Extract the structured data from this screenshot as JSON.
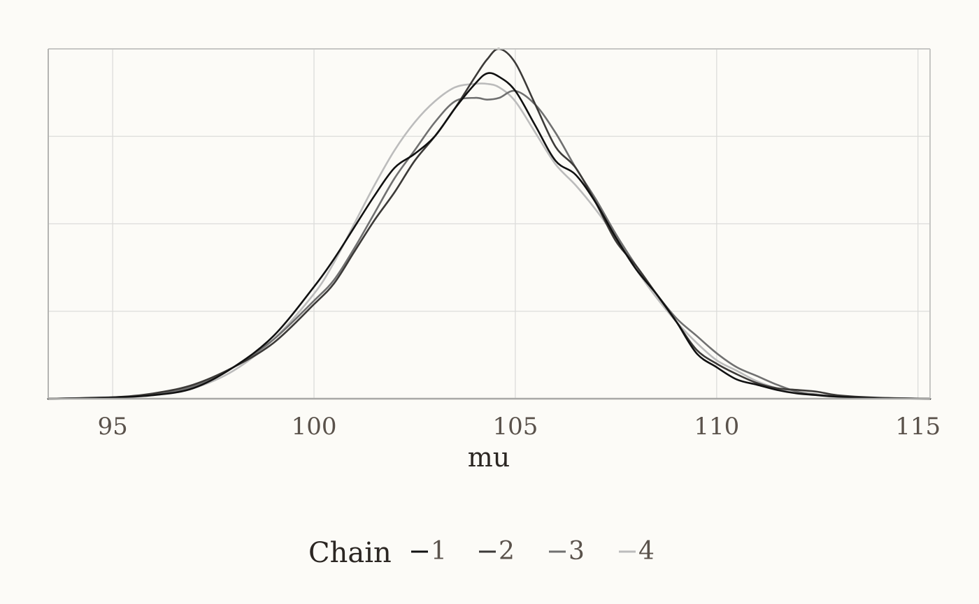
{
  "chart_data": {
    "type": "line",
    "title": "",
    "xlabel": "mu",
    "ylabel": "",
    "xlim": [
      93.4,
      115.3
    ],
    "ylim": [
      0,
      1.0
    ],
    "x_ticks": [
      95,
      100,
      105,
      110,
      115
    ],
    "x_tick_labels": [
      "95",
      "100",
      "105",
      "110",
      "115"
    ],
    "grid": true,
    "legend": {
      "title": "Chain",
      "placement": "bottom",
      "labels": [
        "1",
        "2",
        "3",
        "4"
      ]
    },
    "series": [
      {
        "name": "1",
        "color": "#111111",
        "x": [
          93.4,
          95.0,
          96.0,
          97.0,
          98.0,
          99.0,
          100.0,
          100.5,
          101.0,
          101.5,
          102.0,
          102.5,
          103.0,
          103.5,
          104.0,
          104.3,
          104.6,
          105.0,
          105.5,
          106.0,
          106.5,
          107.0,
          107.5,
          108.0,
          108.5,
          109.0,
          109.5,
          110.0,
          110.5,
          111.0,
          111.5,
          112.0,
          112.5,
          113.0,
          114.0,
          115.3
        ],
        "y": [
          0.0,
          0.004,
          0.01,
          0.03,
          0.09,
          0.18,
          0.32,
          0.4,
          0.49,
          0.58,
          0.66,
          0.7,
          0.75,
          0.83,
          0.9,
          0.93,
          0.92,
          0.88,
          0.78,
          0.68,
          0.64,
          0.56,
          0.46,
          0.37,
          0.3,
          0.22,
          0.13,
          0.09,
          0.055,
          0.04,
          0.025,
          0.015,
          0.01,
          0.006,
          0.002,
          0.0
        ]
      },
      {
        "name": "2",
        "color": "#3c3a38",
        "x": [
          93.4,
          95.0,
          96.0,
          97.0,
          98.0,
          99.0,
          100.0,
          100.5,
          101.0,
          101.5,
          102.0,
          102.5,
          103.0,
          103.5,
          104.0,
          104.3,
          104.6,
          105.0,
          105.5,
          106.0,
          106.5,
          107.0,
          107.5,
          108.0,
          108.5,
          109.0,
          109.5,
          110.0,
          110.5,
          111.0,
          111.5,
          112.0,
          112.5,
          113.0,
          114.0,
          115.3
        ],
        "y": [
          0.0,
          0.004,
          0.015,
          0.04,
          0.09,
          0.16,
          0.27,
          0.33,
          0.42,
          0.51,
          0.59,
          0.68,
          0.75,
          0.83,
          0.92,
          0.97,
          1.0,
          0.96,
          0.84,
          0.72,
          0.66,
          0.56,
          0.45,
          0.38,
          0.3,
          0.22,
          0.14,
          0.1,
          0.07,
          0.045,
          0.03,
          0.025,
          0.02,
          0.01,
          0.003,
          0.0
        ]
      },
      {
        "name": "3",
        "color": "#707070",
        "x": [
          93.4,
          95.0,
          96.0,
          97.0,
          98.0,
          99.0,
          100.0,
          100.5,
          101.0,
          101.5,
          102.0,
          102.5,
          103.0,
          103.5,
          104.0,
          104.3,
          104.6,
          105.0,
          105.5,
          106.0,
          106.5,
          107.0,
          107.5,
          108.0,
          108.5,
          109.0,
          109.5,
          110.0,
          110.5,
          111.0,
          111.5,
          112.0,
          112.5,
          113.0,
          114.0,
          115.3
        ],
        "y": [
          0.0,
          0.003,
          0.012,
          0.035,
          0.09,
          0.17,
          0.28,
          0.34,
          0.43,
          0.53,
          0.63,
          0.71,
          0.79,
          0.85,
          0.86,
          0.855,
          0.86,
          0.88,
          0.84,
          0.76,
          0.66,
          0.57,
          0.47,
          0.38,
          0.3,
          0.23,
          0.18,
          0.13,
          0.09,
          0.065,
          0.04,
          0.02,
          0.012,
          0.006,
          0.002,
          0.0
        ]
      },
      {
        "name": "4",
        "color": "#bcbcbc",
        "x": [
          93.4,
          95.0,
          96.0,
          97.0,
          98.0,
          99.0,
          100.0,
          100.5,
          101.0,
          101.5,
          102.0,
          102.5,
          103.0,
          103.5,
          104.0,
          104.3,
          104.6,
          105.0,
          105.5,
          106.0,
          106.5,
          107.0,
          107.5,
          108.0,
          108.5,
          109.0,
          109.5,
          110.0,
          110.5,
          111.0,
          111.5,
          112.0,
          112.5,
          113.0,
          114.0,
          115.3
        ],
        "y": [
          0.0,
          0.003,
          0.01,
          0.03,
          0.08,
          0.17,
          0.3,
          0.39,
          0.5,
          0.61,
          0.71,
          0.79,
          0.85,
          0.89,
          0.9,
          0.9,
          0.89,
          0.85,
          0.76,
          0.67,
          0.61,
          0.54,
          0.46,
          0.37,
          0.29,
          0.22,
          0.16,
          0.11,
          0.08,
          0.05,
          0.03,
          0.018,
          0.01,
          0.005,
          0.002,
          0.0
        ]
      }
    ]
  }
}
